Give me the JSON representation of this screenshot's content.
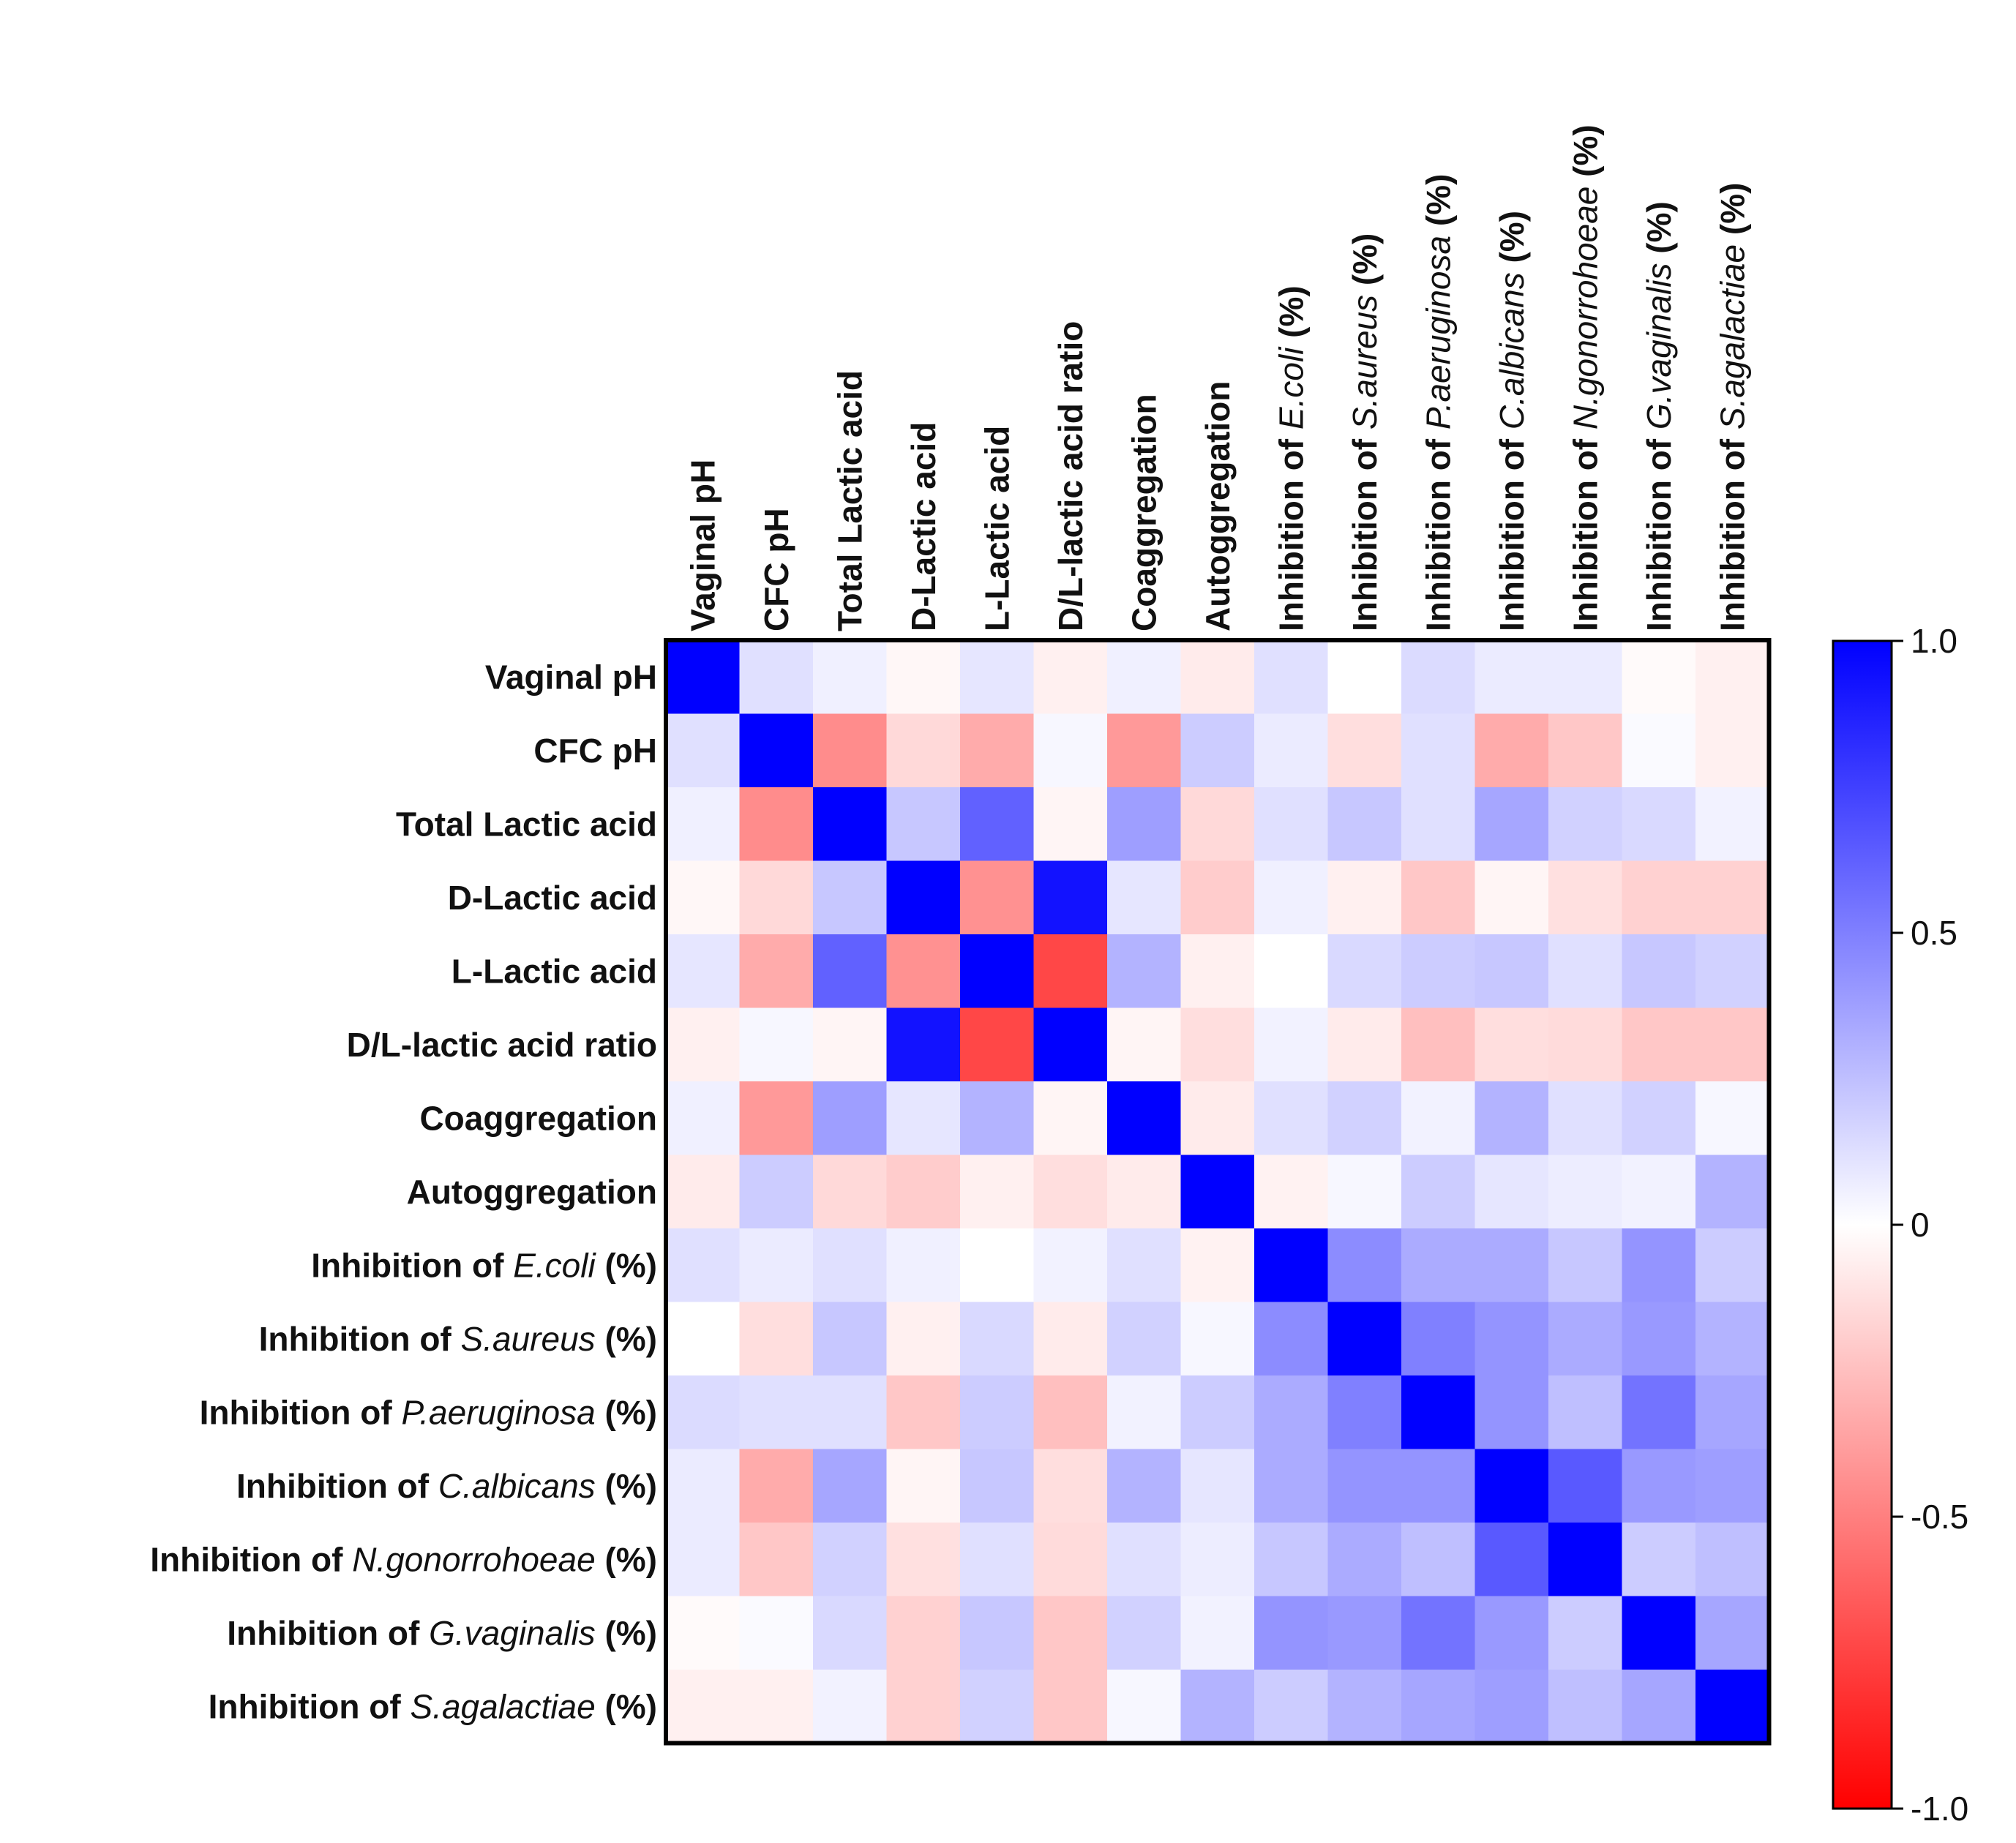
{
  "chart_data": {
    "type": "heatmap",
    "variables": [
      {
        "prefix": "Vaginal pH",
        "italic": "",
        "suffix": ""
      },
      {
        "prefix": "CFC pH",
        "italic": "",
        "suffix": ""
      },
      {
        "prefix": "Total Lactic acid",
        "italic": "",
        "suffix": ""
      },
      {
        "prefix": "D-Lactic acid",
        "italic": "",
        "suffix": ""
      },
      {
        "prefix": "L-Lactic acid",
        "italic": "",
        "suffix": ""
      },
      {
        "prefix": "D/L-lactic acid ratio",
        "italic": "",
        "suffix": ""
      },
      {
        "prefix": "Coaggregation",
        "italic": "",
        "suffix": ""
      },
      {
        "prefix": "Autoggregation",
        "italic": "",
        "suffix": ""
      },
      {
        "prefix": "Inhibition of ",
        "italic": "E.coli",
        "suffix": " (%)"
      },
      {
        "prefix": "Inhibition of ",
        "italic": "S.aureus",
        "suffix": " (%)"
      },
      {
        "prefix": "Inhibition of ",
        "italic": "P.aeruginosa",
        "suffix": " (%)"
      },
      {
        "prefix": "Inhibition of ",
        "italic": "C.albicans",
        "suffix": " (%)"
      },
      {
        "prefix": "Inhibition of ",
        "italic": "N.gonorrohoeae",
        "suffix": " (%)"
      },
      {
        "prefix": "Inhibition of ",
        "italic": "G.vaginalis",
        "suffix": " (%)"
      },
      {
        "prefix": "Inhibition of ",
        "italic": "S.agalactiae",
        "suffix": " (%)"
      }
    ],
    "matrix": [
      [
        1,
        0.12,
        0.06,
        -0.03,
        0.1,
        -0.06,
        0.06,
        -0.08,
        0.12,
        0.0,
        0.14,
        0.08,
        0.08,
        -0.02,
        -0.06
      ],
      [
        0.12,
        1,
        -0.45,
        -0.15,
        -0.33,
        0.03,
        -0.4,
        0.2,
        0.08,
        -0.13,
        0.12,
        -0.33,
        -0.22,
        0.02,
        -0.06
      ],
      [
        0.06,
        -0.45,
        1,
        0.22,
        0.62,
        -0.04,
        0.38,
        -0.15,
        0.12,
        0.22,
        0.12,
        0.35,
        0.18,
        0.15,
        0.05
      ],
      [
        -0.03,
        -0.15,
        0.22,
        1,
        -0.43,
        0.93,
        0.1,
        -0.2,
        0.06,
        -0.06,
        -0.22,
        -0.04,
        -0.12,
        -0.18,
        -0.18
      ],
      [
        0.1,
        -0.33,
        0.62,
        -0.43,
        1,
        -0.72,
        0.3,
        -0.06,
        0.0,
        0.15,
        0.2,
        0.22,
        0.12,
        0.22,
        0.18
      ],
      [
        -0.06,
        0.03,
        -0.04,
        0.93,
        -0.72,
        1,
        -0.04,
        -0.13,
        0.05,
        -0.08,
        -0.25,
        -0.13,
        -0.14,
        -0.22,
        -0.22
      ],
      [
        0.06,
        -0.4,
        0.38,
        0.1,
        0.3,
        -0.04,
        1,
        -0.08,
        0.12,
        0.18,
        0.05,
        0.3,
        0.12,
        0.18,
        0.03
      ],
      [
        -0.08,
        0.2,
        -0.15,
        -0.2,
        -0.06,
        -0.13,
        -0.08,
        1,
        -0.05,
        0.03,
        0.2,
        0.1,
        0.07,
        0.05,
        0.3
      ],
      [
        0.12,
        0.08,
        0.12,
        0.06,
        0.0,
        0.05,
        0.12,
        -0.05,
        1,
        0.45,
        0.33,
        0.33,
        0.22,
        0.42,
        0.2
      ],
      [
        0.0,
        -0.13,
        0.22,
        -0.06,
        0.15,
        -0.08,
        0.18,
        0.03,
        0.45,
        1,
        0.5,
        0.42,
        0.33,
        0.4,
        0.3
      ],
      [
        0.14,
        0.12,
        0.12,
        -0.22,
        0.2,
        -0.25,
        0.05,
        0.2,
        0.33,
        0.5,
        1,
        0.42,
        0.25,
        0.55,
        0.35
      ],
      [
        0.08,
        -0.33,
        0.35,
        -0.04,
        0.22,
        -0.13,
        0.3,
        0.1,
        0.33,
        0.42,
        0.42,
        1,
        0.65,
        0.4,
        0.38
      ],
      [
        0.08,
        -0.22,
        0.18,
        -0.12,
        0.12,
        -0.14,
        0.12,
        0.07,
        0.22,
        0.33,
        0.25,
        0.65,
        1,
        0.2,
        0.25
      ],
      [
        -0.02,
        0.02,
        0.15,
        -0.18,
        0.22,
        -0.22,
        0.18,
        0.05,
        0.42,
        0.4,
        0.55,
        0.4,
        0.2,
        1,
        0.35
      ],
      [
        -0.06,
        -0.06,
        0.05,
        -0.18,
        0.18,
        -0.22,
        0.03,
        0.3,
        0.2,
        0.3,
        0.35,
        0.38,
        0.25,
        0.35,
        1
      ]
    ],
    "colorscale": {
      "min": -1.0,
      "max": 1.0,
      "min_color": "#ff0000",
      "mid_color": "#ffffff",
      "max_color": "#0000ff",
      "ticks": [
        "1.0",
        "0.5",
        "0",
        "-0.5",
        "-1.0"
      ],
      "tick_values": [
        1.0,
        0.5,
        0,
        -0.5,
        -1.0
      ]
    },
    "title": "",
    "xlabel": "",
    "ylabel": ""
  }
}
